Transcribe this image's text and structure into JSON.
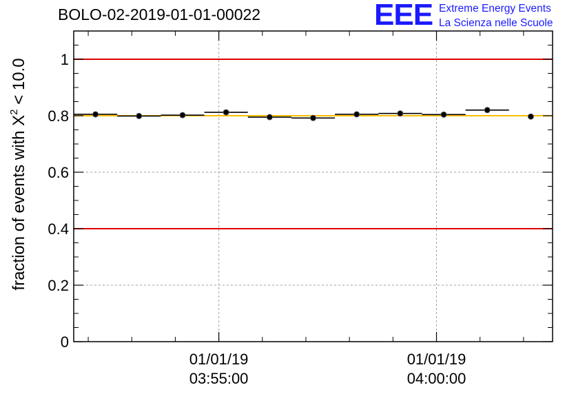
{
  "header": {
    "title": "BOLO-02-2019-01-01-00022",
    "logo": "EEE",
    "logo_line1": "Extreme Energy Events",
    "logo_line2": "La Scienza nelle Scuole"
  },
  "colors": {
    "threshold_lines": "#e00000",
    "reference_line": "#ffbf00",
    "markers": "#000000",
    "grid": "#a0a0a0",
    "logo": "#1a1aff"
  },
  "chart_data": {
    "type": "scatter",
    "title": "BOLO-02-2019-01-01-00022",
    "xlabel": "",
    "ylabel_parts": {
      "prefix": "fraction of events with ",
      "symbol": "X",
      "superscript": "2",
      "suffix": " < 10.0"
    },
    "xlim": [
      "2019-01-01 03:51:40",
      "2019-01-01 04:02:40"
    ],
    "ylim": [
      0,
      1.1
    ],
    "y_ticks": [
      "0",
      "0.2",
      "0.4",
      "0.6",
      "0.8",
      "1"
    ],
    "y_tick_values": [
      0,
      0.2,
      0.4,
      0.6,
      0.8,
      1.0
    ],
    "x_tick_labels": [
      {
        "date": "01/01/19",
        "time": "03:55:00"
      },
      {
        "date": "01/01/19",
        "time": "04:00:00"
      }
    ],
    "x_tick_values": [
      200,
      500
    ],
    "x_units": "seconds after 2019-01-01 03:51:40",
    "grid": true,
    "points": [
      {
        "x": 30,
        "y": 0.805,
        "xerr": 30
      },
      {
        "x": 90,
        "y": 0.799,
        "xerr": 30
      },
      {
        "x": 150,
        "y": 0.802,
        "xerr": 30
      },
      {
        "x": 210,
        "y": 0.812,
        "xerr": 30
      },
      {
        "x": 270,
        "y": 0.795,
        "xerr": 30
      },
      {
        "x": 330,
        "y": 0.792,
        "xerr": 30
      },
      {
        "x": 390,
        "y": 0.805,
        "xerr": 30
      },
      {
        "x": 450,
        "y": 0.808,
        "xerr": 30
      },
      {
        "x": 510,
        "y": 0.804,
        "xerr": 30
      },
      {
        "x": 570,
        "y": 0.82,
        "xerr": 30
      },
      {
        "x": 630,
        "y": 0.797,
        "xerr": 0
      }
    ],
    "hlines": [
      {
        "y": 1.0,
        "color": "#e00000"
      },
      {
        "y": 0.8,
        "color": "#ffbf00"
      },
      {
        "y": 0.4,
        "color": "#e00000"
      }
    ]
  }
}
